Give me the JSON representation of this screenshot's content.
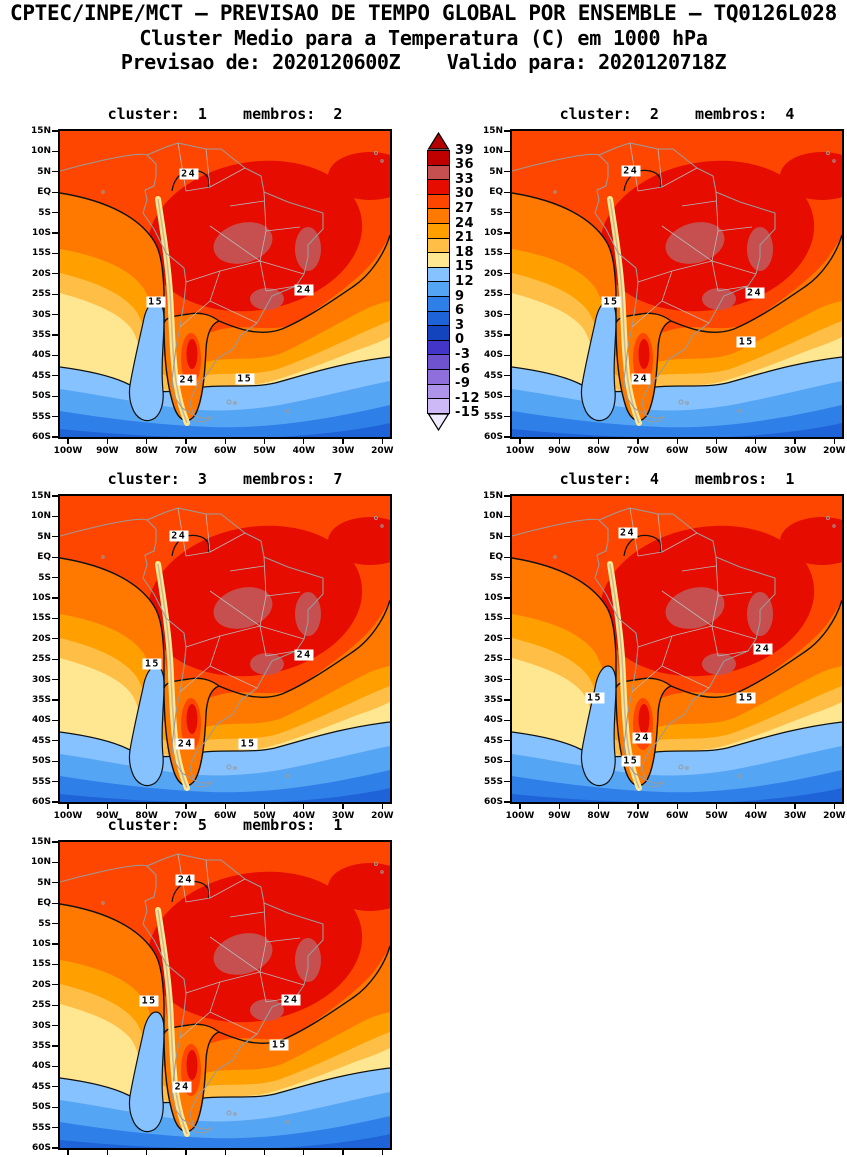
{
  "header": {
    "line1": "CPTEC/INPE/MCT — PREVISAO DE TEMPO GLOBAL POR ENSEMBLE — TQ0126L028",
    "line2": "Cluster Medio para a Temperatura (C) em 1000 hPa",
    "line3": "Previsao de: 2020120600Z    Valido para: 2020120718Z",
    "init_time": "2020120600Z",
    "valid_time": "2020120718Z",
    "model_tag": "TQ0126L028",
    "variable": "Temperatura (C) em 1000 hPa"
  },
  "chart_data": {
    "type": "heatmap",
    "subtype": "filled-contour-temperature-maps-ensemble-clusters",
    "region": "South America",
    "title": "Cluster Medio para a Temperatura (C) em 1000 hPa",
    "units": "C",
    "grid": "off",
    "legend_position": "between panel 1 and panel 2, vertical colorbar",
    "x_axis": {
      "label": "longitude",
      "ticks": [
        "100W",
        "90W",
        "80W",
        "70W",
        "60W",
        "50W",
        "40W",
        "30W",
        "20W"
      ]
    },
    "y_axis": {
      "label": "latitude",
      "ticks": [
        "15N",
        "10N",
        "5N",
        "EQ",
        "5S",
        "10S",
        "15S",
        "20S",
        "25S",
        "30S",
        "35S",
        "40S",
        "45S",
        "50S",
        "55S",
        "60S"
      ]
    },
    "colorbar": {
      "units": "C",
      "levels_c": [
        39,
        36,
        33,
        30,
        27,
        24,
        21,
        18,
        15,
        12,
        9,
        6,
        3,
        0,
        -3,
        -6,
        -9,
        -12,
        -15
      ],
      "tick_labels": [
        "39",
        "36",
        "33",
        "30",
        "27",
        "24",
        "21",
        "18",
        "15",
        "12",
        "9",
        "6",
        "3",
        "0",
        "-3",
        "-6",
        "-9",
        "-12",
        "-15"
      ],
      "band_colors_top_to_bottom": [
        "#C00000",
        "#C65050",
        "#E60C00",
        "#FF4600",
        "#FF7800",
        "#FFA000",
        "#FFBE46",
        "#FFE792",
        "#85C2FF",
        "#55A5F5",
        "#2F7FE8",
        "#1E64D8",
        "#1443BE",
        "#4335C8",
        "#6F52CD",
        "#8E6FDC",
        "#AE93EA",
        "#CDB9F6"
      ],
      "arrow_top_color": "#B40000",
      "arrow_bottom_color": "#EFEAFD"
    },
    "panels": [
      {
        "title": "cluster:  1    membros:  2",
        "cluster": 1,
        "membros": 2,
        "contour_labels": [
          {
            "text": "24",
            "x": 39,
            "y": 14
          },
          {
            "text": "15",
            "x": 29,
            "y": 56
          },
          {
            "text": "24",
            "x": 74,
            "y": 52
          },
          {
            "text": "15",
            "x": 56,
            "y": 81
          },
          {
            "text": "24",
            "x": 38.5,
            "y": 81.5
          }
        ]
      },
      {
        "title": "cluster:  2    membros:  4",
        "cluster": 2,
        "membros": 4,
        "contour_labels": [
          {
            "text": "24",
            "x": 36,
            "y": 13
          },
          {
            "text": "15",
            "x": 30,
            "y": 56
          },
          {
            "text": "24",
            "x": 73.5,
            "y": 53
          },
          {
            "text": "15",
            "x": 71,
            "y": 69
          },
          {
            "text": "24",
            "x": 39,
            "y": 81
          }
        ]
      },
      {
        "title": "cluster:  3    membros:  7",
        "cluster": 3,
        "membros": 7,
        "contour_labels": [
          {
            "text": "24",
            "x": 36,
            "y": 13
          },
          {
            "text": "15",
            "x": 28,
            "y": 55
          },
          {
            "text": "24",
            "x": 74,
            "y": 52
          },
          {
            "text": "15",
            "x": 57,
            "y": 81
          },
          {
            "text": "24",
            "x": 38,
            "y": 81
          }
        ]
      },
      {
        "title": "cluster:  4    membros:  1",
        "cluster": 4,
        "membros": 1,
        "contour_labels": [
          {
            "text": "24",
            "x": 35,
            "y": 12
          },
          {
            "text": "15",
            "x": 25,
            "y": 66
          },
          {
            "text": "24",
            "x": 76,
            "y": 50
          },
          {
            "text": "15",
            "x": 71,
            "y": 66
          },
          {
            "text": "24",
            "x": 39.5,
            "y": 79
          },
          {
            "text": "15",
            "x": 36,
            "y": 86.5
          }
        ]
      },
      {
        "title": "cluster:  5    membros:  1",
        "cluster": 5,
        "membros": 1,
        "contour_labels": [
          {
            "text": "24",
            "x": 38,
            "y": 12.5
          },
          {
            "text": "15",
            "x": 27,
            "y": 52
          },
          {
            "text": "24",
            "x": 70,
            "y": 51.5
          },
          {
            "text": "15",
            "x": 66.5,
            "y": 66.5
          },
          {
            "text": "24",
            "x": 37,
            "y": 80
          }
        ]
      }
    ]
  }
}
